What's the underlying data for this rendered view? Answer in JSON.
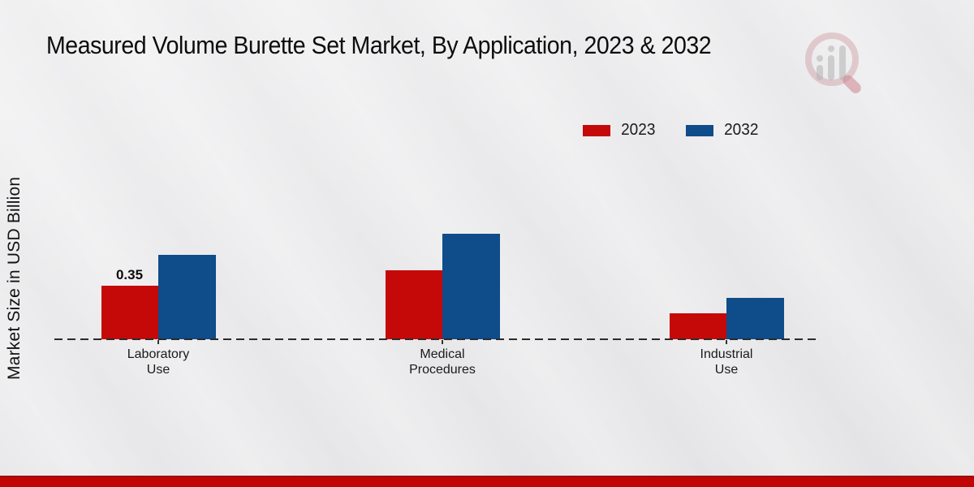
{
  "chart_data": {
    "type": "bar",
    "title": "Measured Volume Burette Set Market, By Application, 2023 & 2032",
    "ylabel": "Market Size in USD Billion",
    "xlabel": "",
    "categories": [
      "Laboratory Use",
      "Medical Procedures",
      "Industrial Use"
    ],
    "series": [
      {
        "name": "2023",
        "color": "#c50808",
        "values": [
          0.35,
          0.45,
          0.17
        ]
      },
      {
        "name": "2032",
        "color": "#0e4c8a",
        "values": [
          0.55,
          0.69,
          0.27
        ]
      }
    ],
    "data_labels": [
      {
        "series": "2023",
        "category": "Laboratory Use",
        "text": "0.35"
      }
    ],
    "legend_position": "top-right",
    "grid": false,
    "y_axis_ticks_visible": false,
    "baseline_style": "dashed"
  },
  "branding": {
    "watermark_icon": "magnifier-bar-chart-logo",
    "bottom_bar_color": "#c10404"
  }
}
